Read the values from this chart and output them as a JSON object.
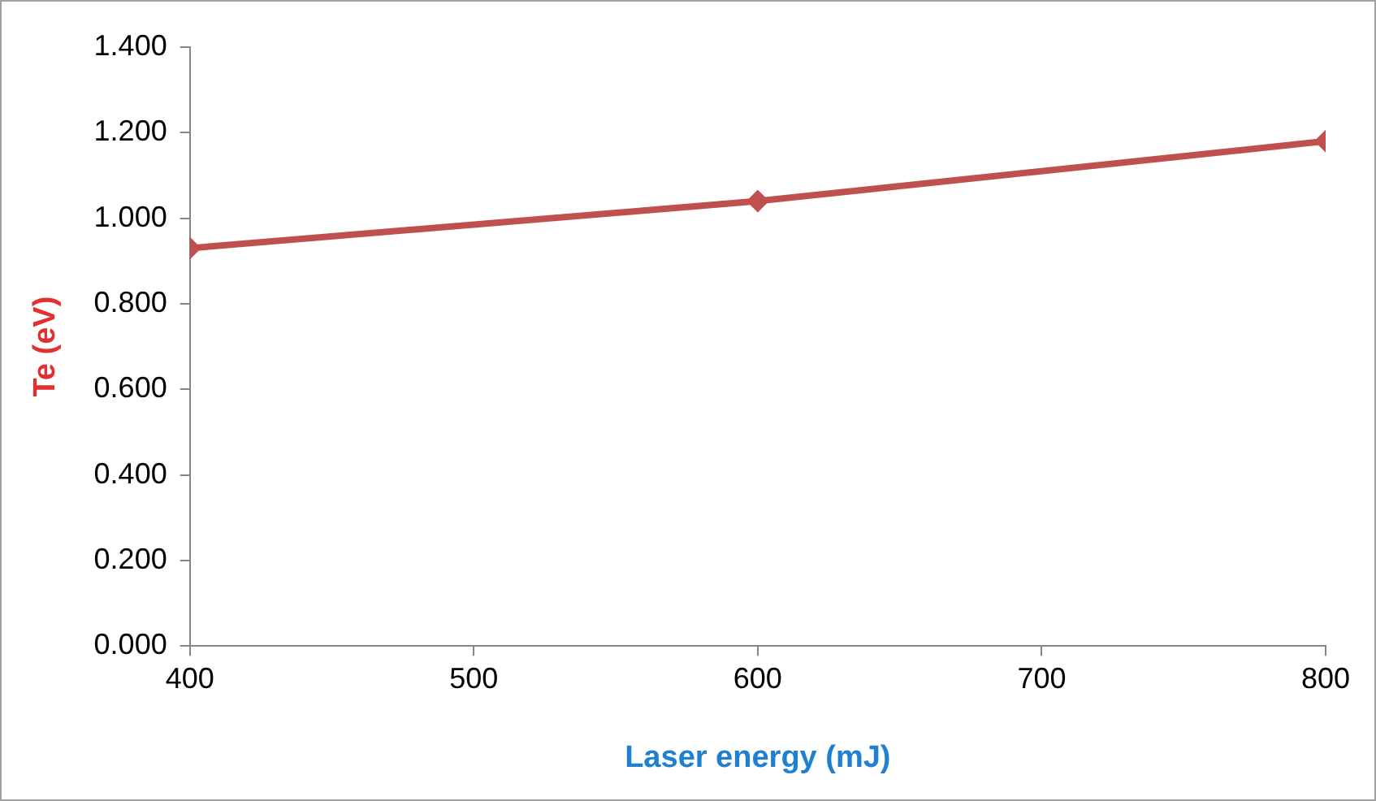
{
  "chart_data": {
    "type": "line",
    "xlabel": "Laser energy (mJ)",
    "ylabel": "Te (eV)",
    "x": [
      400,
      600,
      800
    ],
    "series": [
      {
        "color": "#c0504d",
        "values": [
          0.93,
          1.04,
          1.18
        ]
      }
    ],
    "xlim": [
      400,
      800
    ],
    "xticks": [
      400,
      500,
      600,
      700,
      800
    ],
    "ylim": [
      0,
      1.4
    ],
    "yticks": [
      {
        "value": 0,
        "label": "0.000"
      },
      {
        "value": 0.2,
        "label": "0.200"
      },
      {
        "value": 0.4,
        "label": "0.400"
      },
      {
        "value": 0.6,
        "label": "0.600"
      },
      {
        "value": 0.8,
        "label": "0.800"
      },
      {
        "value": 1,
        "label": "1.000"
      },
      {
        "value": 1.2,
        "label": "1.200"
      },
      {
        "value": 1.4,
        "label": "1.400"
      }
    ],
    "grid": false,
    "legend": false,
    "marker": "diamond",
    "line_style": "solid"
  }
}
